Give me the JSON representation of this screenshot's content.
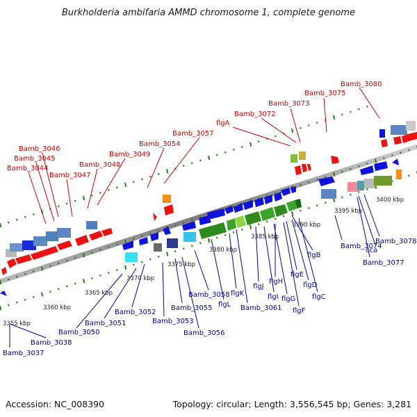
{
  "title": "Burkholderia ambifaria AMMD chromosome 1, complete genome",
  "footer": {
    "accession": "Accession: NC_008390",
    "summary": "Topology: circular; Length: 3,556,545 bp; Genes: 3,281"
  },
  "scale_labels": [
    "3355 kbp",
    "3360 kbp",
    "3365 kbp",
    "3370 kbp",
    "3375 kbp",
    "3380 kbp",
    "3385 kbp",
    "3390 kbp",
    "3395 kbp",
    "3400 kbp"
  ],
  "labels_top": [
    "Bamb_3080",
    "Bamb_3075",
    "Bamb_3073",
    "Bamb_3072",
    "flgA",
    "Bamb_3057",
    "Bamb_3054",
    "Bamb_3049",
    "Bamb_3048",
    "Bamb_3047",
    "Bamb_3046",
    "Bamb_3045",
    "Bamb_3044"
  ],
  "labels_bottom": [
    "flgB",
    "flgE",
    "flgD",
    "flgC",
    "flgH",
    "flgJ",
    "flgG",
    "flgI",
    "flgF",
    "flgK",
    "flgL",
    "Bamb_3058",
    "Bamb_3061",
    "Bamb_3055",
    "Bamb_3056",
    "Bamb_3053",
    "Bamb_3052",
    "Bamb_3051",
    "Bamb_3050",
    "Bamb_3038",
    "Bamb_3037",
    "Bamb_3074",
    "Bamb_3078",
    "cca",
    "Bamb_3077"
  ],
  "colors": {
    "forward_gene": "#ee1111",
    "reverse_gene": "#1111dd",
    "flagellar_operon": "#2f8a1c",
    "backbone": "#8a8a8a",
    "tick": "#2b7a1a",
    "top_label": "#cc0000",
    "bottom_label": "#0000aa"
  }
}
